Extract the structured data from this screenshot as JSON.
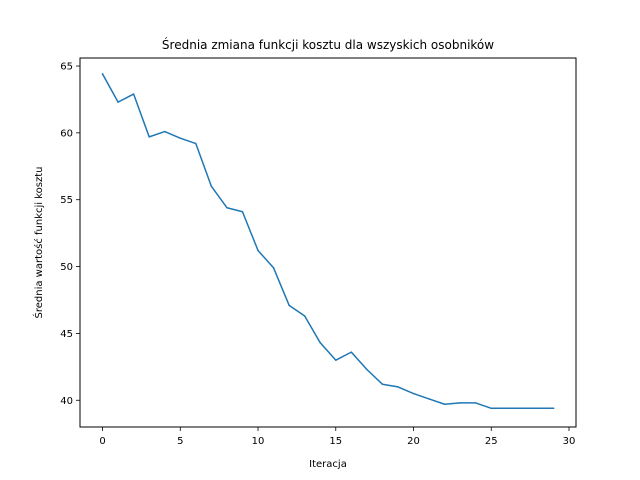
{
  "chart_data": {
    "type": "line",
    "title": "Średnia zmiana funkcji kosztu dla wszyskich osobników",
    "xlabel": "Iteracja",
    "ylabel": "Średnia wartość funkcji kosztu",
    "xlim": [
      -1.45,
      30.45
    ],
    "ylim": [
      38.0,
      65.6
    ],
    "xticks": [
      0,
      5,
      10,
      15,
      20,
      25,
      30
    ],
    "yticks": [
      40,
      45,
      50,
      55,
      60,
      65
    ],
    "grid": false,
    "series": [
      {
        "color": "#1f77b4",
        "x": [
          0,
          1,
          2,
          3,
          4,
          5,
          6,
          7,
          8,
          9,
          10,
          11,
          12,
          13,
          14,
          15,
          16,
          17,
          18,
          19,
          20,
          21,
          22,
          23,
          24,
          25,
          26,
          27,
          28,
          29
        ],
        "values": [
          64.4,
          62.3,
          62.9,
          59.7,
          60.1,
          59.6,
          59.2,
          56.0,
          54.4,
          54.1,
          51.2,
          49.9,
          47.1,
          46.3,
          44.3,
          43.0,
          43.6,
          42.3,
          41.2,
          41.0,
          40.5,
          40.1,
          39.7,
          39.8,
          39.8,
          39.4,
          39.4,
          39.4,
          39.4,
          39.4
        ]
      }
    ]
  }
}
